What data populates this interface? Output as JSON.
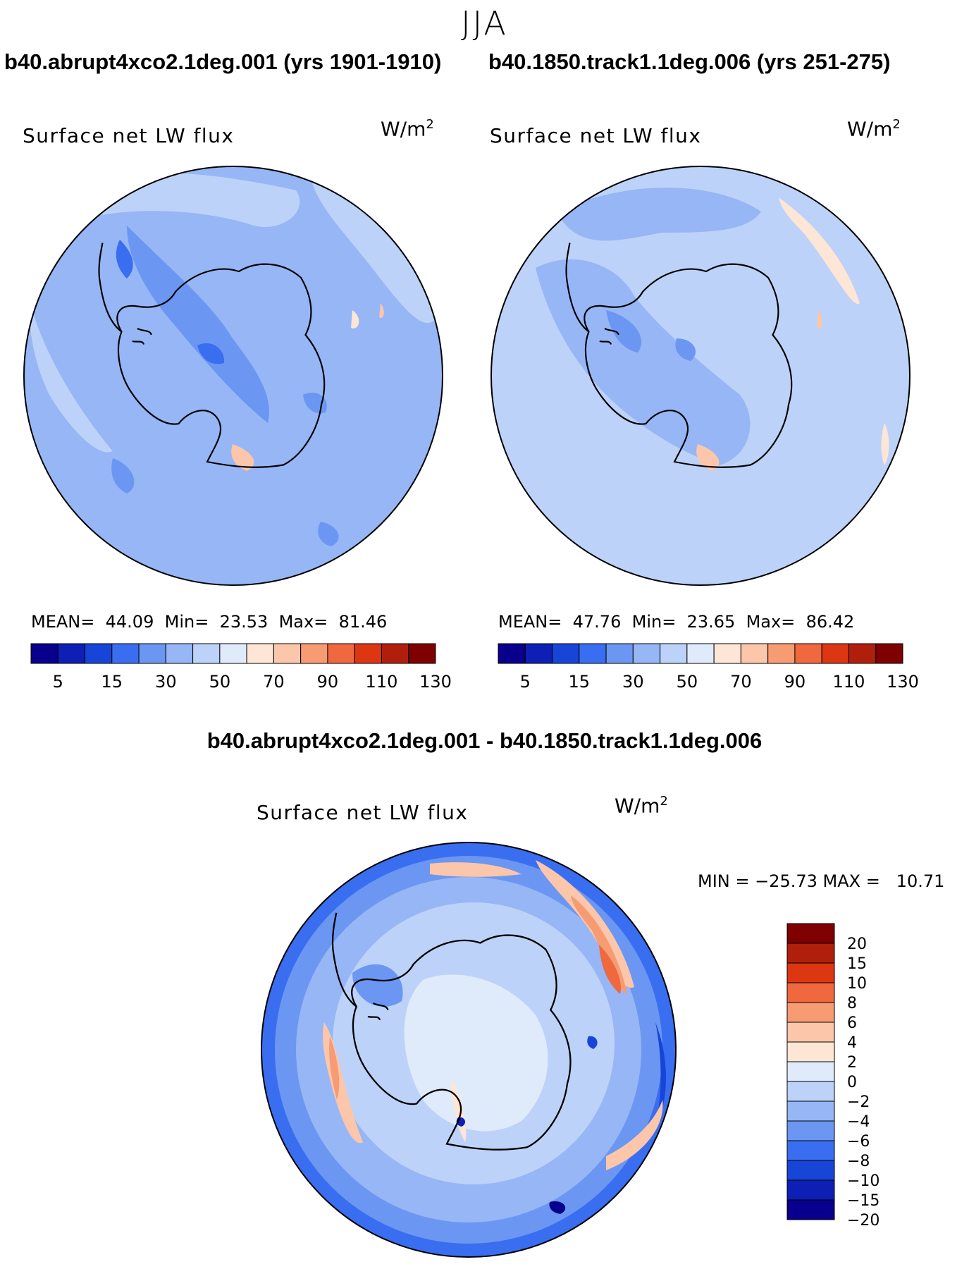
{
  "season": "JJA",
  "panels": [
    {
      "case_title": "b40.abrupt4xco2.1deg.001 (yrs 1901-1910)",
      "variable": "Surface net LW flux",
      "units": "W/m",
      "units_exp": "2",
      "stats": {
        "mean_label": "MEAN=",
        "mean": "44.09",
        "min_label": "Min=",
        "min": "23.53",
        "max_label": "Max=",
        "max": "81.46"
      }
    },
    {
      "case_title": "b40.1850.track1.1deg.006 (yrs 251-275)",
      "variable": "Surface net LW flux",
      "units": "W/m",
      "units_exp": "2",
      "stats": {
        "mean_label": "MEAN=",
        "mean": "47.76",
        "min_label": "Min=",
        "min": "23.65",
        "max_label": "Max=",
        "max": "86.42"
      }
    }
  ],
  "abs_colorbar": {
    "colors": [
      "#08008c",
      "#0d1fb5",
      "#1645d8",
      "#3a6ef0",
      "#6b97f2",
      "#97b6f5",
      "#bdd2f8",
      "#dfebfb",
      "#fde6d6",
      "#fcc6ab",
      "#f79b73",
      "#f0683d",
      "#dc3712",
      "#b01f0b",
      "#7f0000"
    ],
    "labels": [
      "5",
      "15",
      "30",
      "50",
      "70",
      "90",
      "110",
      "130"
    ]
  },
  "diff": {
    "title": "b40.abrupt4xco2.1deg.001 - b40.1850.track1.1deg.006",
    "variable": "Surface net LW flux",
    "units": "W/m",
    "units_exp": "2",
    "min_max": "MIN = −25.73 MAX =   10.71",
    "colorbar": {
      "colors_top_to_bottom": [
        "#7f0000",
        "#b01f0b",
        "#dc3712",
        "#f0683d",
        "#f79b73",
        "#fcc6ab",
        "#fde6d6",
        "#dfebfb",
        "#bdd2f8",
        "#97b6f5",
        "#6b97f2",
        "#3a6ef0",
        "#1645d8",
        "#0d1fb5",
        "#08008c"
      ],
      "labels": [
        "20",
        "15",
        "10",
        "8",
        "6",
        "4",
        "2",
        "0",
        "−2",
        "−4",
        "−6",
        "−8",
        "−10",
        "−15",
        "−20"
      ]
    }
  },
  "chart_data": {
    "type": "heatmap",
    "projection": "south polar stereographic",
    "maps": [
      {
        "name": "b40.abrupt4xco2.1deg.001 (yrs 1901-1910)",
        "mean": 44.09,
        "min": 23.53,
        "max": 81.46,
        "levels": [
          5,
          10,
          15,
          20,
          30,
          40,
          50,
          60,
          70,
          80,
          90,
          100,
          110,
          120,
          130
        ]
      },
      {
        "name": "b40.1850.track1.1deg.006 (yrs 251-275)",
        "mean": 47.76,
        "min": 23.65,
        "max": 86.42,
        "levels": [
          5,
          10,
          15,
          20,
          30,
          40,
          50,
          60,
          70,
          80,
          90,
          100,
          110,
          120,
          130
        ]
      },
      {
        "name": "b40.abrupt4xco2.1deg.001 - b40.1850.track1.1deg.006",
        "min": -25.73,
        "max": 10.71,
        "levels": [
          -20,
          -15,
          -10,
          -8,
          -6,
          -4,
          -2,
          0,
          2,
          4,
          6,
          8,
          10,
          15,
          20
        ]
      }
    ]
  }
}
